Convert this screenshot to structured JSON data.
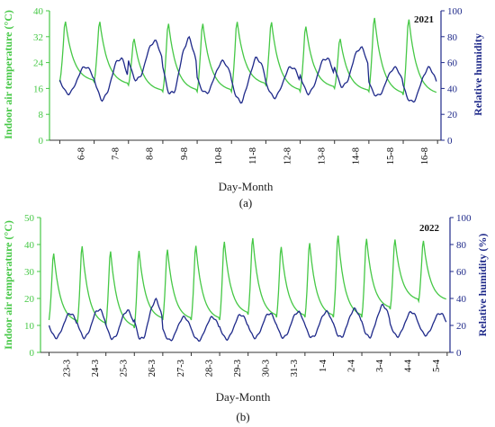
{
  "colors": {
    "temperature": "#46c846",
    "humidity": "#1f2a8a"
  },
  "chart_data": [
    {
      "type": "line",
      "panel_label": "(a)",
      "annotation": "2021",
      "xlabel": "Day-Month",
      "ylabel_left": "Indoor air temperature (°C)",
      "ylabel_right": "Relative humidity",
      "ylim_left": [
        0,
        40
      ],
      "yticks_left": [
        0,
        8,
        16,
        24,
        32,
        40
      ],
      "ylim_right": [
        0,
        100
      ],
      "yticks_right": [
        0,
        20,
        40,
        60,
        80,
        100
      ],
      "categories": [
        "6-8",
        "7-8",
        "8-8",
        "9-8",
        "10-8",
        "11-8",
        "12-8",
        "13-8",
        "14-8",
        "15-8",
        "16-8"
      ],
      "grid": false,
      "series": [
        {
          "axis": "left",
          "color": "#46c846",
          "daily_max": [
            38,
            38,
            32.5,
            37.5,
            37.5,
            38,
            38,
            36.5,
            32.5,
            39.5,
            39
          ],
          "daily_min": [
            18,
            18,
            17,
            15,
            15,
            15,
            17,
            15,
            16,
            15,
            14
          ]
        },
        {
          "axis": "right",
          "color": "#1f2a8a",
          "daily_max": [
            58,
            65,
            78,
            80,
            62,
            65,
            58,
            65,
            73,
            57,
            57
          ],
          "daily_min": [
            35,
            30,
            45,
            33,
            35,
            28,
            32,
            35,
            40,
            33,
            28
          ]
        }
      ]
    },
    {
      "type": "line",
      "panel_label": "(b)",
      "annotation": "2022",
      "xlabel": "Day-Month",
      "ylabel_left": "Indoor air temperature (°C)",
      "ylabel_right": "Relative humidity (%)",
      "ylim_left": [
        0,
        50
      ],
      "yticks_left": [
        0,
        10,
        20,
        30,
        40,
        50
      ],
      "ylim_right": [
        0,
        100
      ],
      "yticks_right": [
        0,
        20,
        40,
        60,
        80,
        100
      ],
      "categories": [
        "23-3",
        "24-3",
        "25-3",
        "26-3",
        "27-3",
        "28-3",
        "29-3",
        "30-3",
        "31-3",
        "1-4",
        "2-4",
        "3-4",
        "4-4",
        "5-4"
      ],
      "grid": false,
      "series": [
        {
          "axis": "left",
          "color": "#46c846",
          "daily_max": [
            38.5,
            41.5,
            39.5,
            39.5,
            40,
            41.5,
            43,
            44.5,
            41,
            42.5,
            45.5,
            44,
            43.5,
            43
          ],
          "daily_min": [
            12,
            11,
            10,
            9,
            12,
            12,
            12,
            14,
            13,
            13,
            13,
            13,
            16,
            19
          ]
        },
        {
          "axis": "right",
          "color": "#1f2a8a",
          "daily_max": [
            30,
            33,
            32,
            40,
            27,
            27,
            29,
            30,
            31,
            31,
            33,
            36,
            31,
            30
          ],
          "daily_min": [
            10,
            10,
            9,
            8,
            8,
            8,
            9,
            10,
            10,
            10,
            10,
            10,
            11,
            12
          ]
        }
      ]
    }
  ]
}
